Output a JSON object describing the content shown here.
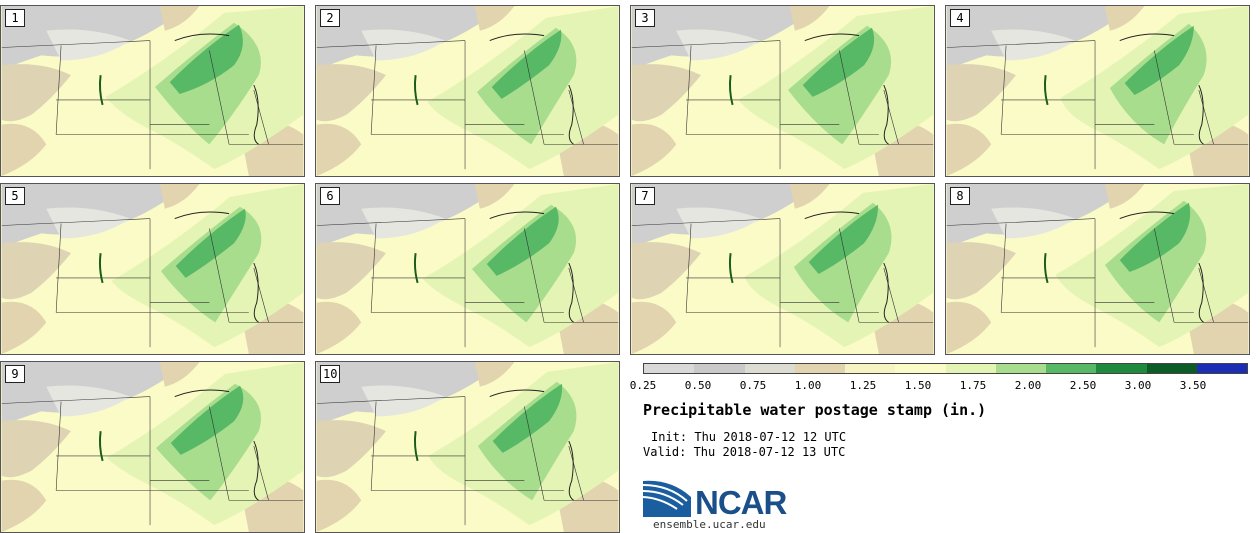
{
  "stamps": [
    {
      "label": "1"
    },
    {
      "label": "2"
    },
    {
      "label": "3"
    },
    {
      "label": "4"
    },
    {
      "label": "5"
    },
    {
      "label": "6"
    },
    {
      "label": "7"
    },
    {
      "label": "8"
    },
    {
      "label": "9"
    },
    {
      "label": "10"
    }
  ],
  "colorbar": {
    "colors": [
      "#d9d9d9",
      "#c9c9c9",
      "#dcdcd2",
      "#e3d4b0",
      "#f7f4c4",
      "#fbfbc8",
      "#e4f4b4",
      "#a9dd8e",
      "#57b865",
      "#1d8a3d",
      "#0d5c27",
      "#1c2eb4"
    ],
    "ticks": [
      "0.25",
      "0.50",
      "0.75",
      "1.00",
      "1.25",
      "1.50",
      "1.75",
      "2.00",
      "2.50",
      "3.00",
      "3.50"
    ]
  },
  "title": "Precipitable water postage stamp (in.)",
  "init": "Init: Thu 2018-07-12 12 UTC",
  "valid": "Valid: Thu 2018-07-12 13 UTC",
  "logo": {
    "text": "NCAR",
    "url": "ensemble.ucar.edu"
  }
}
